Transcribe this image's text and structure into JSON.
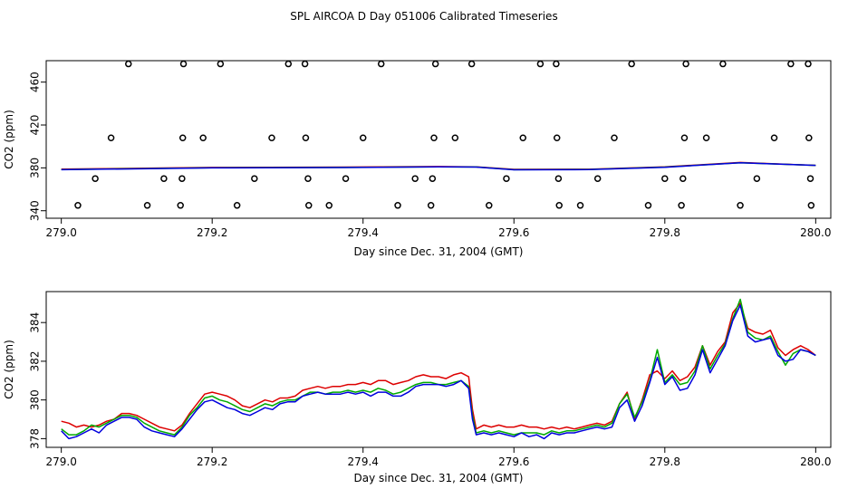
{
  "page_title": "SPL AIRCOA D  Day 051006  Calibrated Timeseries",
  "chart_data": [
    {
      "type": "scatter+line",
      "xlabel": "Day since Dec. 31, 2004 (GMT)",
      "ylabel": "CO2 (ppm)",
      "xlim": [
        278.98,
        280.02
      ],
      "ylim": [
        333,
        480
      ],
      "x_ticks": [
        279.0,
        279.2,
        279.4,
        279.6,
        279.8,
        280.0
      ],
      "x_tick_labels": [
        "279.0",
        "279.2",
        "279.4",
        "279.6",
        "279.8",
        "280.0"
      ],
      "y_ticks": [
        340,
        380,
        420,
        460
      ],
      "y_tick_labels": [
        "340",
        "380",
        "420",
        "460"
      ],
      "scatter_points": [
        [
          279.022,
          345
        ],
        [
          279.045,
          370
        ],
        [
          279.066,
          408
        ],
        [
          279.089,
          477
        ],
        [
          279.114,
          345
        ],
        [
          279.136,
          370
        ],
        [
          279.158,
          345
        ],
        [
          279.16,
          370
        ],
        [
          279.161,
          408
        ],
        [
          279.162,
          477
        ],
        [
          279.188,
          408
        ],
        [
          279.211,
          477
        ],
        [
          279.233,
          345
        ],
        [
          279.256,
          370
        ],
        [
          279.279,
          408
        ],
        [
          279.301,
          477
        ],
        [
          279.323,
          477
        ],
        [
          279.324,
          408
        ],
        [
          279.327,
          370
        ],
        [
          279.328,
          345
        ],
        [
          279.355,
          345
        ],
        [
          279.377,
          370
        ],
        [
          279.4,
          408
        ],
        [
          279.424,
          477
        ],
        [
          279.446,
          345
        ],
        [
          279.469,
          370
        ],
        [
          279.49,
          345
        ],
        [
          279.492,
          370
        ],
        [
          279.494,
          408
        ],
        [
          279.496,
          477
        ],
        [
          279.522,
          408
        ],
        [
          279.544,
          477
        ],
        [
          279.567,
          345
        ],
        [
          279.59,
          370
        ],
        [
          279.612,
          408
        ],
        [
          279.635,
          477
        ],
        [
          279.656,
          477
        ],
        [
          279.657,
          408
        ],
        [
          279.659,
          370
        ],
        [
          279.66,
          345
        ],
        [
          279.688,
          345
        ],
        [
          279.711,
          370
        ],
        [
          279.733,
          408
        ],
        [
          279.756,
          477
        ],
        [
          279.778,
          345
        ],
        [
          279.8,
          370
        ],
        [
          279.822,
          345
        ],
        [
          279.824,
          370
        ],
        [
          279.826,
          408
        ],
        [
          279.828,
          477
        ],
        [
          279.855,
          408
        ],
        [
          279.877,
          477
        ],
        [
          279.9,
          345
        ],
        [
          279.922,
          370
        ],
        [
          279.945,
          408
        ],
        [
          279.967,
          477
        ],
        [
          279.99,
          477
        ],
        [
          279.991,
          408
        ],
        [
          279.993,
          370
        ],
        [
          279.994,
          345
        ]
      ],
      "lines": [
        {
          "name": "red",
          "color": "#dd0000",
          "x": [
            279.0,
            279.2,
            279.4,
            279.5,
            279.55,
            279.6,
            279.7,
            279.8,
            279.9,
            280.0
          ],
          "values": [
            378.8,
            380.4,
            380.8,
            381.2,
            380.9,
            378.6,
            378.7,
            381.0,
            385.0,
            382.3
          ]
        },
        {
          "name": "green",
          "color": "#00aa00",
          "x": [
            279.0,
            279.2,
            279.4,
            279.5,
            279.55,
            279.6,
            279.7,
            279.8,
            279.9,
            280.0
          ],
          "values": [
            378.4,
            380.1,
            380.5,
            381.0,
            380.8,
            378.3,
            378.5,
            380.7,
            384.8,
            382.3
          ]
        },
        {
          "name": "blue",
          "color": "#0000dd",
          "x": [
            279.0,
            279.2,
            279.4,
            279.5,
            279.55,
            279.6,
            279.7,
            279.8,
            279.9,
            280.0
          ],
          "values": [
            378.3,
            380.0,
            380.4,
            380.9,
            380.7,
            378.2,
            378.4,
            380.6,
            384.7,
            382.3
          ]
        }
      ]
    },
    {
      "type": "line",
      "xlabel": "Day since Dec. 31, 2004 (GMT)",
      "ylabel": "CO2 (ppm)",
      "xlim": [
        278.98,
        280.02
      ],
      "ylim": [
        377.55,
        385.6
      ],
      "x_ticks": [
        279.0,
        279.2,
        279.4,
        279.6,
        279.8,
        280.0
      ],
      "x_tick_labels": [
        "279.0",
        "279.2",
        "279.4",
        "279.6",
        "279.8",
        "280.0"
      ],
      "y_ticks": [
        378,
        380,
        382,
        384
      ],
      "y_tick_labels": [
        "378",
        "380",
        "382",
        "384"
      ],
      "series": [
        {
          "name": "red",
          "color": "#dd0000",
          "x": [
            279.0,
            279.01,
            279.02,
            279.03,
            279.04,
            279.05,
            279.06,
            279.07,
            279.08,
            279.09,
            279.1,
            279.11,
            279.12,
            279.13,
            279.14,
            279.15,
            279.16,
            279.17,
            279.18,
            279.19,
            279.2,
            279.21,
            279.22,
            279.23,
            279.24,
            279.25,
            279.26,
            279.27,
            279.28,
            279.29,
            279.3,
            279.31,
            279.32,
            279.33,
            279.34,
            279.35,
            279.36,
            279.37,
            279.38,
            279.39,
            279.4,
            279.41,
            279.42,
            279.43,
            279.44,
            279.45,
            279.46,
            279.47,
            279.48,
            279.49,
            279.5,
            279.51,
            279.52,
            279.53,
            279.54,
            279.545,
            279.55,
            279.56,
            279.57,
            279.58,
            279.59,
            279.6,
            279.61,
            279.62,
            279.63,
            279.64,
            279.65,
            279.66,
            279.67,
            279.68,
            279.69,
            279.7,
            279.71,
            279.72,
            279.73,
            279.74,
            279.75,
            279.76,
            279.77,
            279.78,
            279.79,
            279.8,
            279.81,
            279.82,
            279.83,
            279.84,
            279.85,
            279.86,
            279.87,
            279.88,
            279.89,
            279.9,
            279.91,
            279.92,
            279.93,
            279.94,
            279.95,
            279.96,
            279.97,
            279.98,
            279.99,
            280.0
          ],
          "values": [
            378.9,
            378.8,
            378.6,
            378.7,
            378.6,
            378.7,
            378.9,
            379.0,
            379.3,
            379.3,
            379.2,
            379.0,
            378.8,
            378.6,
            378.5,
            378.4,
            378.7,
            379.3,
            379.8,
            380.3,
            380.4,
            380.3,
            380.2,
            380.0,
            379.7,
            379.6,
            379.8,
            380.0,
            379.9,
            380.1,
            380.1,
            380.2,
            380.5,
            380.6,
            380.7,
            380.6,
            380.7,
            380.7,
            380.8,
            380.8,
            380.9,
            380.8,
            381.0,
            381.0,
            380.8,
            380.9,
            381.0,
            381.2,
            381.3,
            381.2,
            381.2,
            381.1,
            381.3,
            381.4,
            381.2,
            379.5,
            378.5,
            378.7,
            378.6,
            378.7,
            378.6,
            378.6,
            378.7,
            378.6,
            378.6,
            378.5,
            378.6,
            378.5,
            378.6,
            378.5,
            378.6,
            378.7,
            378.8,
            378.7,
            378.9,
            379.8,
            380.4,
            379.0,
            380.0,
            381.3,
            381.5,
            381.1,
            381.5,
            381.0,
            381.2,
            381.7,
            382.8,
            381.8,
            382.5,
            383.0,
            384.5,
            385.0,
            383.7,
            383.5,
            383.4,
            383.6,
            382.7,
            382.3,
            382.6,
            382.8,
            382.6,
            382.3
          ]
        },
        {
          "name": "green",
          "color": "#00aa00",
          "x": [
            279.0,
            279.01,
            279.02,
            279.03,
            279.04,
            279.05,
            279.06,
            279.07,
            279.08,
            279.09,
            279.1,
            279.11,
            279.12,
            279.13,
            279.14,
            279.15,
            279.16,
            279.17,
            279.18,
            279.19,
            279.2,
            279.21,
            279.22,
            279.23,
            279.24,
            279.25,
            279.26,
            279.27,
            279.28,
            279.29,
            279.3,
            279.31,
            279.32,
            279.33,
            279.34,
            279.35,
            279.36,
            279.37,
            279.38,
            279.39,
            279.4,
            279.41,
            279.42,
            279.43,
            279.44,
            279.45,
            279.46,
            279.47,
            279.48,
            279.49,
            279.5,
            279.51,
            279.52,
            279.53,
            279.54,
            279.545,
            279.55,
            279.56,
            279.57,
            279.58,
            279.59,
            279.6,
            279.61,
            279.62,
            279.63,
            279.64,
            279.65,
            279.66,
            279.67,
            279.68,
            279.69,
            279.7,
            279.71,
            279.72,
            279.73,
            279.74,
            279.75,
            279.76,
            279.77,
            279.78,
            279.79,
            279.8,
            279.81,
            279.82,
            279.83,
            279.84,
            279.85,
            279.86,
            279.87,
            279.88,
            279.89,
            279.9,
            279.91,
            279.92,
            279.93,
            279.94,
            279.95,
            279.96,
            279.97,
            279.98,
            279.99,
            280.0
          ],
          "values": [
            378.5,
            378.2,
            378.2,
            378.4,
            378.7,
            378.6,
            378.8,
            379.0,
            379.2,
            379.2,
            379.1,
            378.8,
            378.6,
            378.4,
            378.3,
            378.2,
            378.6,
            379.2,
            379.6,
            380.1,
            380.2,
            380.0,
            379.9,
            379.7,
            379.5,
            379.4,
            379.6,
            379.8,
            379.7,
            379.9,
            380.0,
            380.0,
            380.2,
            380.4,
            380.4,
            380.3,
            380.4,
            380.4,
            380.5,
            380.4,
            380.5,
            380.4,
            380.6,
            380.5,
            380.3,
            380.4,
            380.6,
            380.8,
            380.9,
            380.9,
            380.8,
            380.8,
            380.9,
            381.0,
            380.7,
            379.2,
            378.3,
            378.4,
            378.3,
            378.4,
            378.3,
            378.2,
            378.3,
            378.3,
            378.3,
            378.2,
            378.4,
            378.3,
            378.4,
            378.4,
            378.5,
            378.6,
            378.7,
            378.6,
            378.8,
            379.8,
            380.3,
            379.1,
            379.9,
            381.0,
            382.6,
            380.9,
            381.3,
            380.8,
            380.9,
            381.5,
            382.8,
            381.6,
            382.3,
            382.9,
            384.2,
            385.2,
            383.5,
            383.2,
            383.1,
            383.3,
            382.5,
            381.8,
            382.4,
            382.6,
            382.5,
            382.3
          ]
        },
        {
          "name": "blue",
          "color": "#0000dd",
          "x": [
            279.0,
            279.01,
            279.02,
            279.03,
            279.04,
            279.05,
            279.06,
            279.07,
            279.08,
            279.09,
            279.1,
            279.11,
            279.12,
            279.13,
            279.14,
            279.15,
            279.16,
            279.17,
            279.18,
            279.19,
            279.2,
            279.21,
            279.22,
            279.23,
            279.24,
            279.25,
            279.26,
            279.27,
            279.28,
            279.29,
            279.3,
            279.31,
            279.32,
            279.33,
            279.34,
            279.35,
            279.36,
            279.37,
            279.38,
            279.39,
            279.4,
            279.41,
            279.42,
            279.43,
            279.44,
            279.45,
            279.46,
            279.47,
            279.48,
            279.49,
            279.5,
            279.51,
            279.52,
            279.53,
            279.54,
            279.545,
            279.55,
            279.56,
            279.57,
            279.58,
            279.59,
            279.6,
            279.61,
            279.62,
            279.63,
            279.64,
            279.65,
            279.66,
            279.67,
            279.68,
            279.69,
            279.7,
            279.71,
            279.72,
            279.73,
            279.74,
            279.75,
            279.76,
            279.77,
            279.78,
            279.79,
            279.8,
            279.81,
            279.82,
            279.83,
            279.84,
            279.85,
            279.86,
            279.87,
            279.88,
            279.89,
            279.9,
            279.91,
            279.92,
            279.93,
            279.94,
            279.95,
            279.96,
            279.97,
            279.98,
            279.99,
            280.0
          ],
          "values": [
            378.4,
            378.0,
            378.1,
            378.3,
            378.5,
            378.3,
            378.7,
            378.9,
            379.1,
            379.1,
            379.0,
            378.6,
            378.4,
            378.3,
            378.2,
            378.1,
            378.5,
            379.0,
            379.5,
            379.9,
            380.0,
            379.8,
            379.6,
            379.5,
            379.3,
            379.2,
            379.4,
            379.6,
            379.5,
            379.8,
            379.9,
            379.9,
            380.2,
            380.3,
            380.4,
            380.3,
            380.3,
            380.3,
            380.4,
            380.3,
            380.4,
            380.2,
            380.4,
            380.4,
            380.2,
            380.2,
            380.4,
            380.7,
            380.8,
            380.8,
            380.8,
            380.7,
            380.8,
            381.0,
            380.6,
            379.0,
            378.2,
            378.3,
            378.2,
            378.3,
            378.2,
            378.1,
            378.3,
            378.1,
            378.2,
            378.0,
            378.3,
            378.2,
            378.3,
            378.3,
            378.4,
            378.5,
            378.6,
            378.5,
            378.6,
            379.6,
            380.0,
            378.9,
            379.7,
            380.9,
            382.2,
            380.8,
            381.2,
            380.5,
            380.6,
            381.3,
            382.6,
            381.4,
            382.1,
            382.8,
            384.1,
            384.9,
            383.3,
            383.0,
            383.1,
            383.2,
            382.3,
            382.0,
            382.1,
            382.6,
            382.5,
            382.3
          ]
        }
      ]
    }
  ]
}
